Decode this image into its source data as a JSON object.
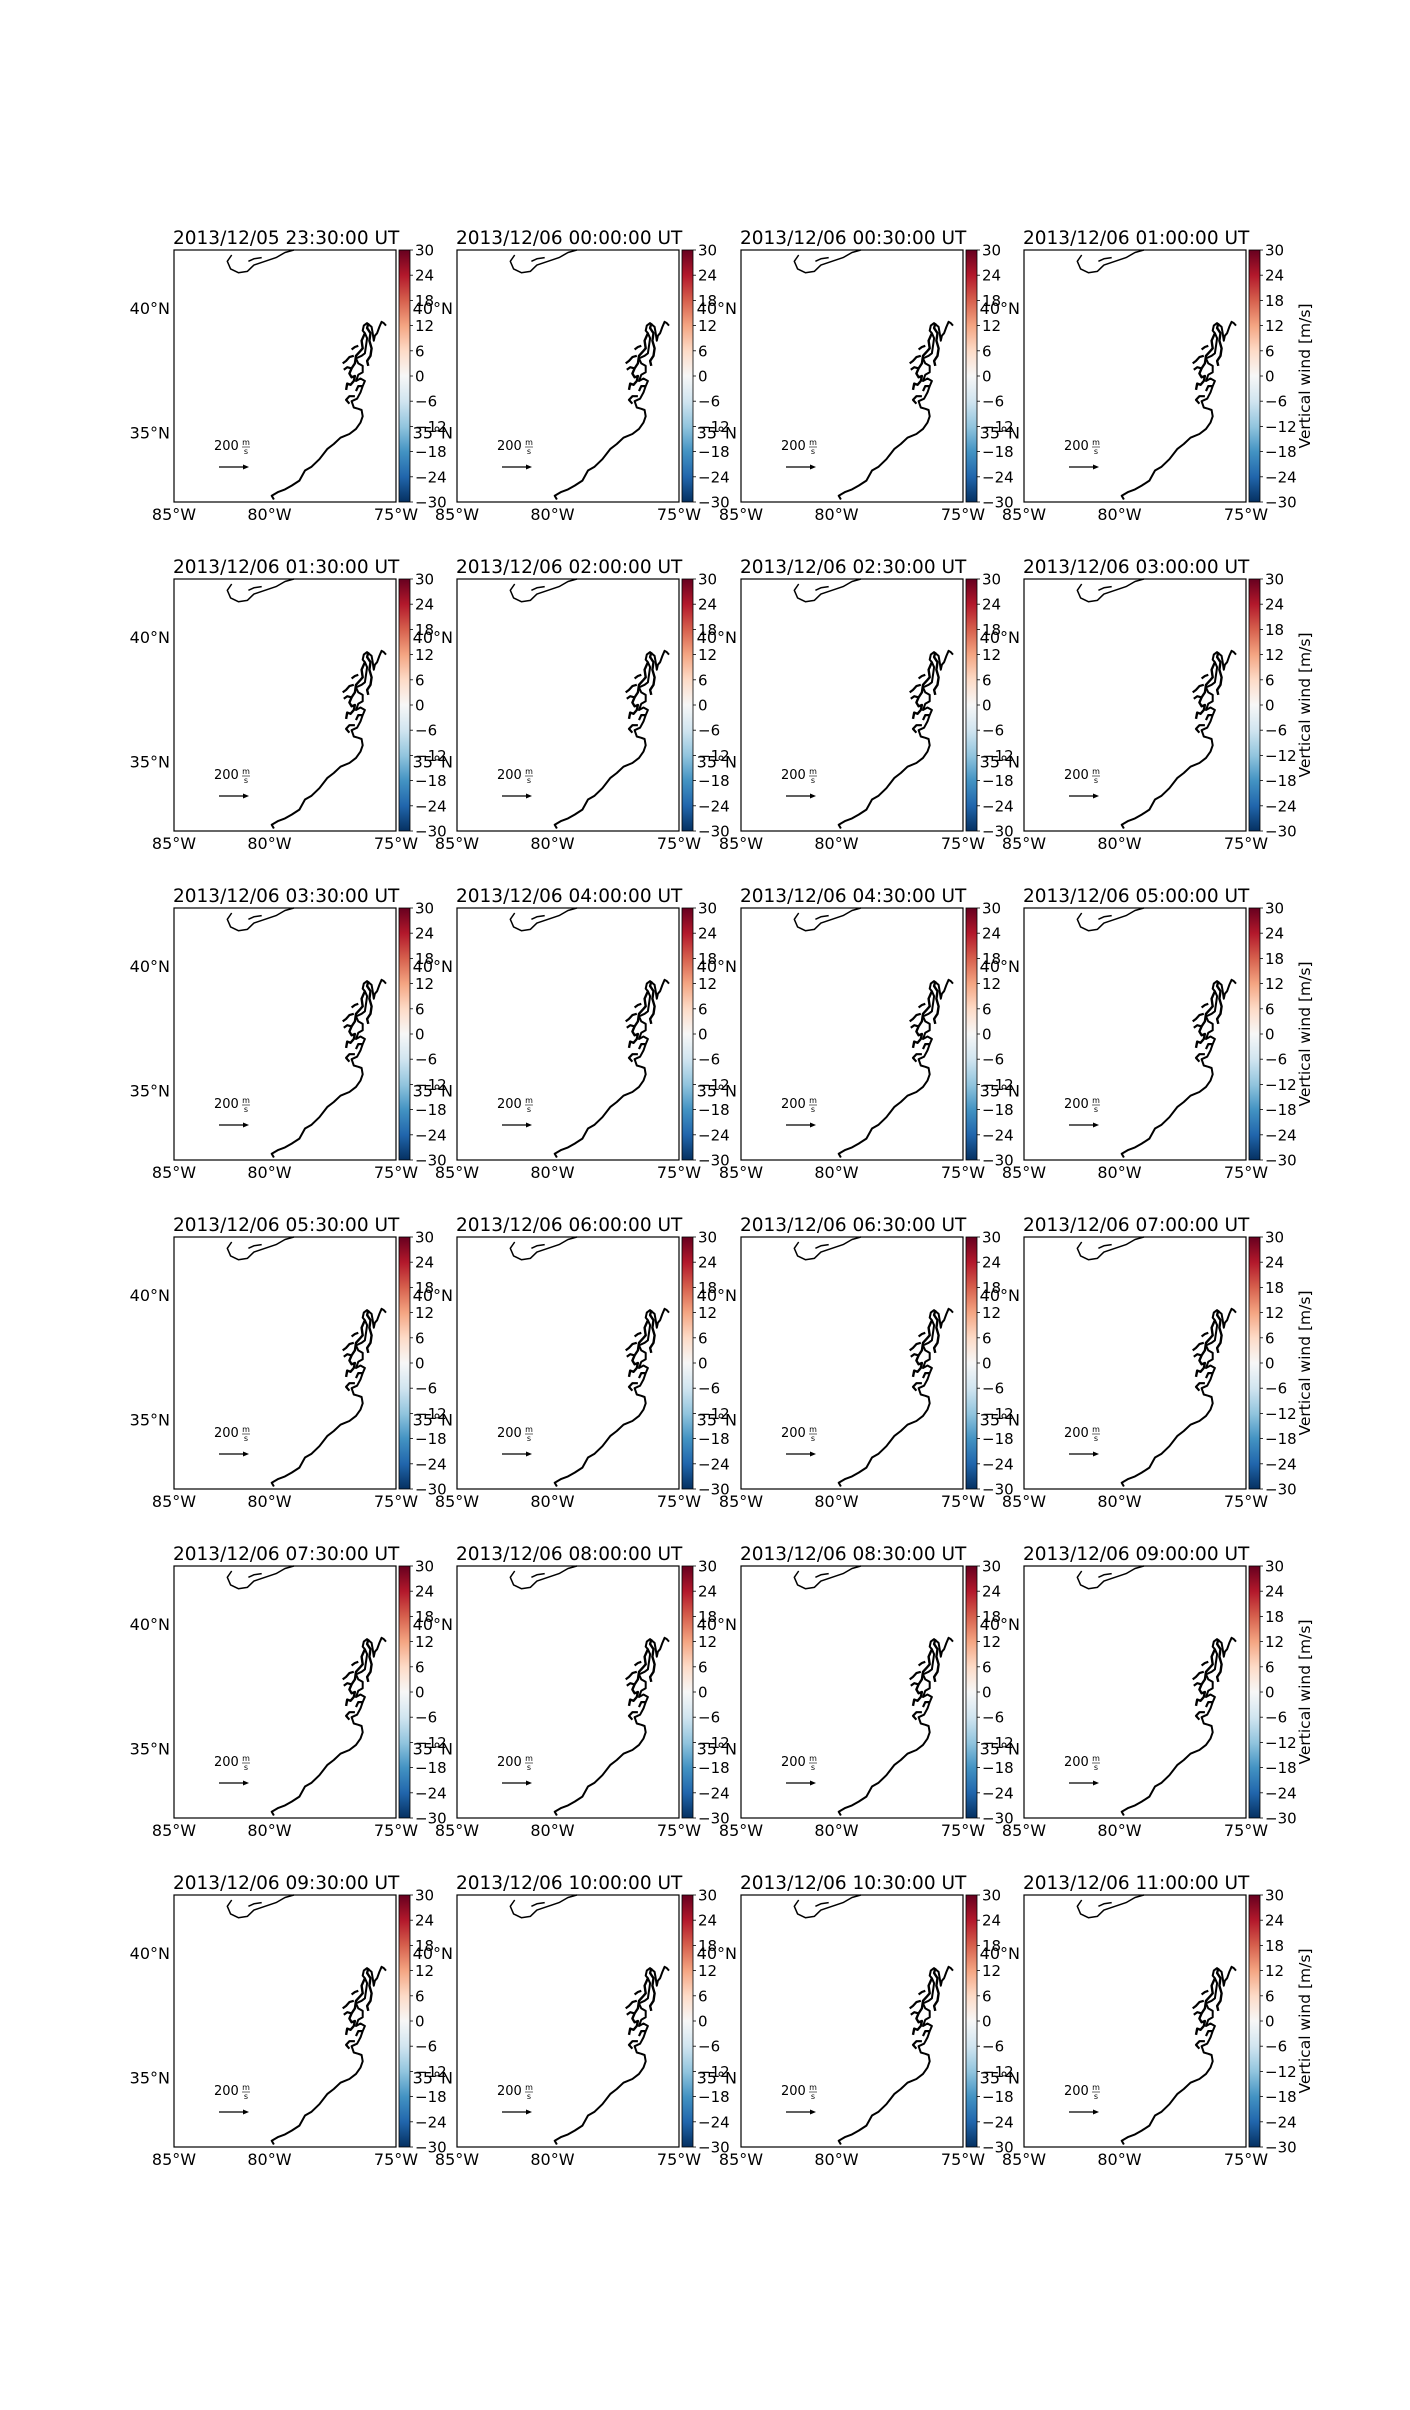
{
  "figure": {
    "panels": [
      {
        "title": "2013/12/05 23:30:00 UT"
      },
      {
        "title": "2013/12/06 00:00:00 UT"
      },
      {
        "title": "2013/12/06 00:30:00 UT"
      },
      {
        "title": "2013/12/06 01:00:00 UT"
      },
      {
        "title": "2013/12/06 01:30:00 UT"
      },
      {
        "title": "2013/12/06 02:00:00 UT"
      },
      {
        "title": "2013/12/06 02:30:00 UT"
      },
      {
        "title": "2013/12/06 03:00:00 UT"
      },
      {
        "title": "2013/12/06 03:30:00 UT"
      },
      {
        "title": "2013/12/06 04:00:00 UT"
      },
      {
        "title": "2013/12/06 04:30:00 UT"
      },
      {
        "title": "2013/12/06 05:00:00 UT"
      },
      {
        "title": "2013/12/06 05:30:00 UT"
      },
      {
        "title": "2013/12/06 06:00:00 UT"
      },
      {
        "title": "2013/12/06 06:30:00 UT"
      },
      {
        "title": "2013/12/06 07:00:00 UT"
      },
      {
        "title": "2013/12/06 07:30:00 UT"
      },
      {
        "title": "2013/12/06 08:00:00 UT"
      },
      {
        "title": "2013/12/06 08:30:00 UT"
      },
      {
        "title": "2013/12/06 09:00:00 UT"
      },
      {
        "title": "2013/12/06 09:30:00 UT"
      },
      {
        "title": "2013/12/06 10:00:00 UT"
      },
      {
        "title": "2013/12/06 10:30:00 UT"
      },
      {
        "title": "2013/12/06 11:00:00 UT"
      }
    ],
    "longitude_ticks": [
      "85°W",
      "80°W",
      "75°W"
    ],
    "latitude_ticks": [
      "40°N",
      "35°N"
    ],
    "colorbar": {
      "label": "Vertical wind [m/s]",
      "ticks": [
        "30",
        "24",
        "18",
        "12",
        "6",
        "0",
        "−6",
        "−12",
        "−18",
        "−24",
        "−30"
      ],
      "range": [
        -30,
        30
      ],
      "colormap": "RdBu_r",
      "colors": [
        "#67001f",
        "#b2182b",
        "#d6604d",
        "#f4a582",
        "#fddbc7",
        "#f7f7f7",
        "#d1e5f0",
        "#92c5de",
        "#4393c3",
        "#2166ac",
        "#053061"
      ]
    },
    "reference_arrow": {
      "value": "200",
      "unit_numerator": "m",
      "unit_denominator": "s"
    },
    "map_extent": {
      "lon": [
        -86,
        -75
      ],
      "lat": [
        32,
        42
      ]
    },
    "coastline_color": "#000000"
  }
}
